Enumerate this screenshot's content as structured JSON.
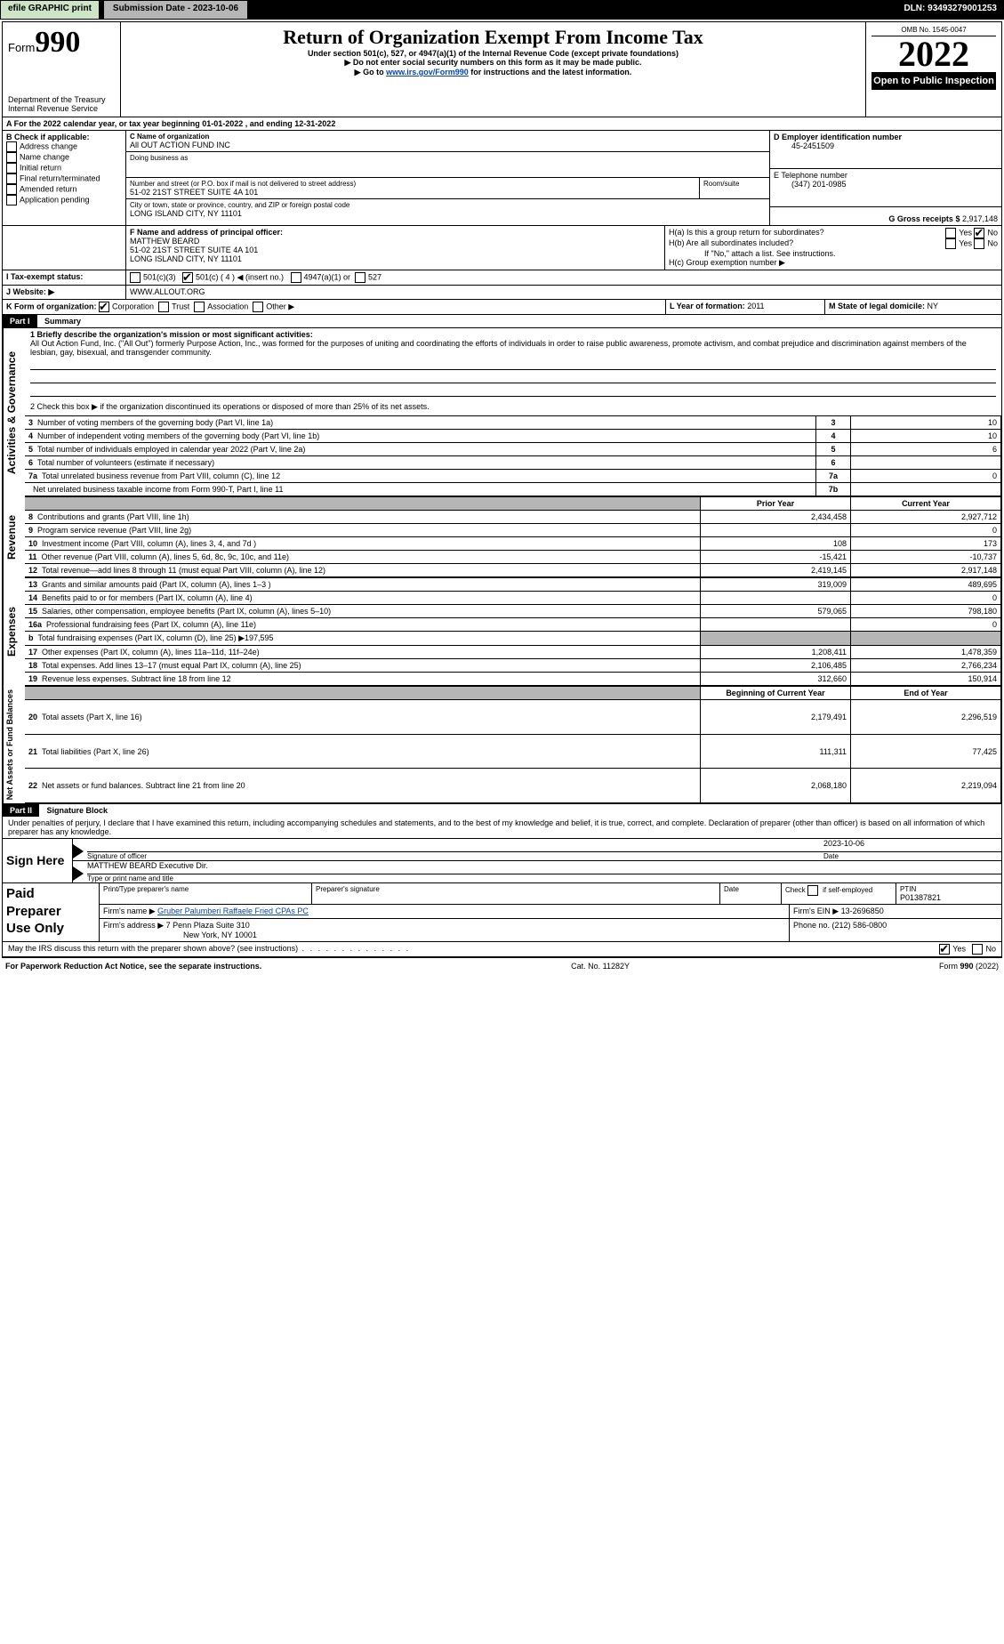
{
  "topbar": {
    "efile_label": "efile GRAPHIC print",
    "submission_label": "Submission Date - 2023-10-06",
    "dln_label": "DLN: 93493279001253"
  },
  "header": {
    "form_word": "Form",
    "form_number": "990",
    "dept": "Department of the Treasury",
    "irs": "Internal Revenue Service",
    "title": "Return of Organization Exempt From Income Tax",
    "sub1": "Under section 501(c), 527, or 4947(a)(1) of the Internal Revenue Code (except private foundations)",
    "sub2": "▶ Do not enter social security numbers on this form as it may be made public.",
    "sub3_pre": "▶ Go to ",
    "sub3_link": "www.irs.gov/Form990",
    "sub3_post": " for instructions and the latest information.",
    "omb": "OMB No. 1545-0047",
    "year": "2022",
    "open": "Open to Public Inspection"
  },
  "period": {
    "line": "A For the 2022 calendar year, or tax year beginning 01-01-2022    , and ending 12-31-2022"
  },
  "blockB": {
    "heading": "B Check if applicable:",
    "items": [
      "Address change",
      "Name change",
      "Initial return",
      "Final return/terminated",
      "Amended return",
      "Application pending"
    ]
  },
  "blockC": {
    "c_label": "C Name of organization",
    "org_name": "All OUT ACTION FUND INC",
    "dba_label": "Doing business as",
    "addr_label": "Number and street (or P.O. box if mail is not delivered to street address)",
    "room_label": "Room/suite",
    "addr": "51-02 21ST STREET SUITE 4A 101",
    "city_label": "City or town, state or province, country, and ZIP or foreign postal code",
    "city": "LONG ISLAND CITY, NY  11101"
  },
  "blockD": {
    "label": "D Employer identification number",
    "value": "45-2451509"
  },
  "blockE": {
    "label": "E Telephone number",
    "value": "(347) 201-0985"
  },
  "blockG": {
    "label_pre": "G Gross receipts $ ",
    "value": "2,917,148"
  },
  "blockF": {
    "label": "F  Name and address of principal officer:",
    "name": "MATTHEW BEARD",
    "addr1": "51-02 21ST STREET SUITE 4A 101",
    "addr2": "LONG ISLAND CITY, NY  11101"
  },
  "blockH": {
    "a": "H(a)  Is this a group return for subordinates?",
    "b": "H(b)  Are all subordinates included?",
    "b_note": "If \"No,\" attach a list. See instructions.",
    "c": "H(c)  Group exemption number ▶",
    "yes": "Yes",
    "no": "No"
  },
  "blockI": {
    "label": "I   Tax-exempt status:",
    "c3": "501(c)(3)",
    "c_other_pre": "501(c) ( 4 ) ◀ (insert no.)",
    "a1": "4947(a)(1) or",
    "527": "527"
  },
  "blockJ": {
    "label": "J   Website: ▶",
    "value": "WWW.ALLOUT.ORG"
  },
  "blockK": {
    "label": "K Form of organization:",
    "corp": "Corporation",
    "trust": "Trust",
    "assoc": "Association",
    "other": "Other ▶"
  },
  "blockL": {
    "label": "L Year of formation: ",
    "value": "2011"
  },
  "blockM": {
    "label": "M State of legal domicile: ",
    "value": "NY"
  },
  "part1": {
    "tab": "Part I",
    "title": "Summary",
    "q1_label": "1  Briefly describe the organization's mission or most significant activities:",
    "q1_text": "All Out Action Fund, Inc. (\"All Out\") formerly Purpose Action, Inc., was formed for the purposes of uniting and coordinating the efforts of individuals in order to raise public awareness, promote activism, and combat prejudice and discrimination against members of the lesbian, gay, bisexual, and transgender community.",
    "q2": "2   Check this box ▶       if the organization discontinued its operations or disposed of more than 25% of its net assets.",
    "vlabel_ag": "Activities & Governance",
    "vlabel_rev": "Revenue",
    "vlabel_exp": "Expenses",
    "vlabel_net": "Net Assets or Fund Balances",
    "rows_ag": [
      {
        "n": "3",
        "t": "Number of voting members of the governing body (Part VI, line 1a)",
        "box": "3",
        "v": "10"
      },
      {
        "n": "4",
        "t": "Number of independent voting members of the governing body (Part VI, line 1b)",
        "box": "4",
        "v": "10"
      },
      {
        "n": "5",
        "t": "Total number of individuals employed in calendar year 2022 (Part V, line 2a)",
        "box": "5",
        "v": "6"
      },
      {
        "n": "6",
        "t": "Total number of volunteers (estimate if necessary)",
        "box": "6",
        "v": ""
      },
      {
        "n": "7a",
        "t": "Total unrelated business revenue from Part VIII, column (C), line 12",
        "box": "7a",
        "v": "0"
      },
      {
        "n": "",
        "t": "Net unrelated business taxable income from Form 990-T, Part I, line 11",
        "box": "7b",
        "v": ""
      }
    ],
    "head_prior": "Prior Year",
    "head_current": "Current Year",
    "rows_rev": [
      {
        "n": "8",
        "t": "Contributions and grants (Part VIII, line 1h)",
        "p": "2,434,458",
        "c": "2,927,712"
      },
      {
        "n": "9",
        "t": "Program service revenue (Part VIII, line 2g)",
        "p": "",
        "c": "0"
      },
      {
        "n": "10",
        "t": "Investment income (Part VIII, column (A), lines 3, 4, and 7d )",
        "p": "108",
        "c": "173"
      },
      {
        "n": "11",
        "t": "Other revenue (Part VIII, column (A), lines 5, 6d, 8c, 9c, 10c, and 11e)",
        "p": "-15,421",
        "c": "-10,737"
      },
      {
        "n": "12",
        "t": "Total revenue—add lines 8 through 11 (must equal Part VIII, column (A), line 12)",
        "p": "2,419,145",
        "c": "2,917,148"
      }
    ],
    "rows_exp": [
      {
        "n": "13",
        "t": "Grants and similar amounts paid (Part IX, column (A), lines 1–3 )",
        "p": "319,009",
        "c": "489,695"
      },
      {
        "n": "14",
        "t": "Benefits paid to or for members (Part IX, column (A), line 4)",
        "p": "",
        "c": "0"
      },
      {
        "n": "15",
        "t": "Salaries, other compensation, employee benefits (Part IX, column (A), lines 5–10)",
        "p": "579,065",
        "c": "798,180"
      },
      {
        "n": "16a",
        "t": "Professional fundraising fees (Part IX, column (A), line 11e)",
        "p": "",
        "c": "0"
      },
      {
        "n": "b",
        "t": "Total fundraising expenses (Part IX, column (D), line 25) ▶197,595",
        "p": "GRAY",
        "c": "GRAY"
      },
      {
        "n": "17",
        "t": "Other expenses (Part IX, column (A), lines 11a–11d, 11f–24e)",
        "p": "1,208,411",
        "c": "1,478,359"
      },
      {
        "n": "18",
        "t": "Total expenses. Add lines 13–17 (must equal Part IX, column (A), line 25)",
        "p": "2,106,485",
        "c": "2,766,234"
      },
      {
        "n": "19",
        "t": "Revenue less expenses. Subtract line 18 from line 12",
        "p": "312,660",
        "c": "150,914"
      }
    ],
    "head_begin": "Beginning of Current Year",
    "head_end": "End of Year",
    "rows_net": [
      {
        "n": "20",
        "t": "Total assets (Part X, line 16)",
        "p": "2,179,491",
        "c": "2,296,519"
      },
      {
        "n": "21",
        "t": "Total liabilities (Part X, line 26)",
        "p": "111,311",
        "c": "77,425"
      },
      {
        "n": "22",
        "t": "Net assets or fund balances. Subtract line 21 from line 20",
        "p": "2,068,180",
        "c": "2,219,094"
      }
    ]
  },
  "part2": {
    "tab": "Part II",
    "title": "Signature Block",
    "decl": "Under penalties of perjury, I declare that I have examined this return, including accompanying schedules and statements, and to the best of my knowledge and belief, it is true, correct, and complete. Declaration of preparer (other than officer) is based on all information of which preparer has any knowledge."
  },
  "sign": {
    "label": "Sign Here",
    "sig_officer": "Signature of officer",
    "date_label": "Date",
    "date": "2023-10-06",
    "name": "MATTHEW BEARD  Executive Dir.",
    "name_label": "Type or print name and title"
  },
  "paid": {
    "label1": "Paid",
    "label2": "Preparer",
    "label3": "Use Only",
    "h_print": "Print/Type preparer's name",
    "h_sig": "Preparer's signature",
    "h_date": "Date",
    "h_check": "Check         if self-employed",
    "h_ptin": "PTIN",
    "ptin": "P01387821",
    "firm_name_l": "Firm's name    ▶",
    "firm_name": "Gruber Palumberi Raffaele Fried CPAs PC",
    "firm_ein_l": "Firm's EIN ▶",
    "firm_ein": "13-2696850",
    "firm_addr_l": "Firm's address ▶",
    "firm_addr1": "7 Penn Plaza Suite 310",
    "firm_addr2": "New York, NY  10001",
    "phone_l": "Phone no. ",
    "phone": "(212) 586-0800"
  },
  "footer": {
    "discuss": "May the IRS discuss this return with the preparer shown above? (see instructions)",
    "yes": "Yes",
    "no": "No",
    "pra": "For Paperwork Reduction Act Notice, see the separate instructions.",
    "cat": "Cat. No. 11282Y",
    "form": "Form 990 (2022)"
  }
}
